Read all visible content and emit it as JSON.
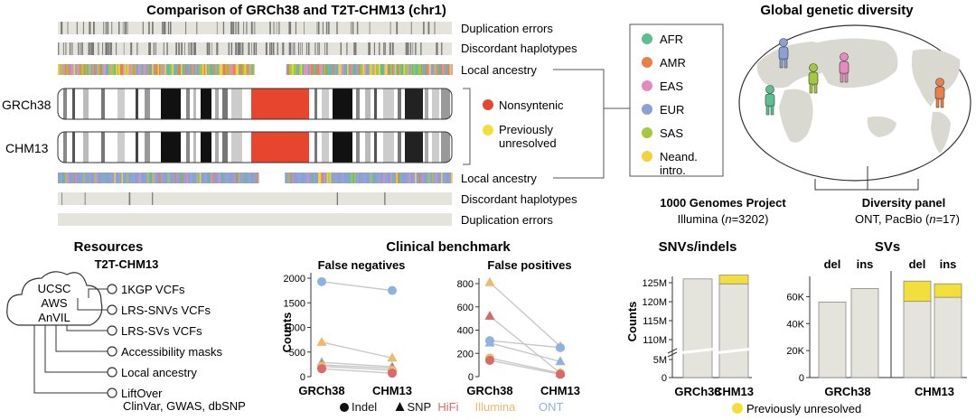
{
  "colors": {
    "AFR": "#5bbf8f",
    "AMR": "#e9804a",
    "EAS": "#e58bbf",
    "EUR": "#8e9fd3",
    "SAS": "#a3c83c",
    "NEAND": "#f1d23a",
    "nonsyntenic": "#e8452e",
    "prev_unresolved": "#f2df3c",
    "track_bg": "#e4e4dc",
    "line": "#555555"
  },
  "comparison": {
    "title": "Comparison of GRCh38 and T2T-CHM13 (chr1)",
    "tracks_top": [
      "Duplication errors",
      "Discordant haplotypes",
      "Local ancestry"
    ],
    "tracks_bottom": [
      "Local ancestry",
      "Discordant haplotypes",
      "Duplication errors"
    ],
    "chrom_labels": [
      "GRCh38",
      "CHM13"
    ],
    "legend": [
      "Nonsyntenic",
      "Previously\nunresolved"
    ]
  },
  "ancestry_legend": {
    "items": [
      {
        "code": "AFR",
        "label": "AFR"
      },
      {
        "code": "AMR",
        "label": "AMR"
      },
      {
        "code": "EAS",
        "label": "EAS"
      },
      {
        "code": "EUR",
        "label": "EUR"
      },
      {
        "code": "SAS",
        "label": "SAS"
      },
      {
        "code": "NEAND",
        "label": "Neand.\nintro."
      }
    ]
  },
  "diversity": {
    "title": "Global genetic diversity",
    "projects": [
      {
        "name": "1000 Genomes Project",
        "detail_pre": "Illumina (",
        "detail_n": "n",
        "detail_post": "=3202)"
      },
      {
        "name": "Diversity panel",
        "detail_pre": "ONT, PacBio (",
        "detail_n": "n",
        "detail_post": "=17)"
      }
    ]
  },
  "resources": {
    "title": "Resources",
    "subtitle": "T2T-CHM13",
    "cloud": [
      "UCSC",
      "AWS",
      "AnVIL"
    ],
    "items": [
      "1KGP VCFs",
      "LRS-SNVs VCFs",
      "LRS-SVs VCFs",
      "Accessibility masks",
      "Local ancestry",
      "LiftOver"
    ],
    "liftover_detail": "ClinVar, GWAS, dbSNP"
  },
  "clinical": {
    "title": "Clinical benchmark",
    "ylabel": "Counts",
    "panels": [
      {
        "title": "False negatives",
        "yticks": [
          "0",
          "500",
          "1000",
          "1500",
          "2000"
        ]
      },
      {
        "title": "False positives",
        "yticks": [
          "0",
          "200",
          "400",
          "600",
          "800"
        ]
      }
    ],
    "xlabels": [
      "GRCh38",
      "CHM13"
    ],
    "legend": [
      {
        "glyph": "●",
        "label": "Indel"
      },
      {
        "glyph": "▲",
        "label": "SNP"
      },
      {
        "label": "HiFi",
        "color": "#d86a6a"
      },
      {
        "label": "Illumina",
        "color": "#f0b86a"
      },
      {
        "label": "ONT",
        "color": "#8fb3dd"
      }
    ]
  },
  "chart_data": [
    {
      "type": "scatter",
      "title": "False negatives",
      "ylabel": "Counts",
      "x": [
        "GRCh38",
        "CHM13"
      ],
      "ylim": [
        0,
        2000
      ],
      "series": [
        {
          "marker": "circle",
          "tech": "ONT",
          "values": [
            1930,
            1750
          ]
        },
        {
          "marker": "triangle",
          "tech": "Illumina",
          "values": [
            700,
            380
          ]
        },
        {
          "marker": "triangle",
          "tech": "ONT",
          "values": [
            290,
            200
          ]
        },
        {
          "marker": "triangle",
          "tech": "HiFi",
          "values": [
            240,
            170
          ]
        },
        {
          "marker": "circle",
          "tech": "Illumina",
          "values": [
            210,
            130
          ]
        },
        {
          "marker": "circle",
          "tech": "HiFi",
          "values": [
            160,
            70
          ]
        }
      ]
    },
    {
      "type": "scatter",
      "title": "False positives",
      "x": [
        "GRCh38",
        "CHM13"
      ],
      "ylim": [
        0,
        800
      ],
      "series": [
        {
          "marker": "triangle",
          "tech": "Illumina",
          "values": [
            810,
            260
          ]
        },
        {
          "marker": "triangle",
          "tech": "HiFi",
          "values": [
            520,
            30
          ]
        },
        {
          "marker": "circle",
          "tech": "ONT",
          "values": [
            310,
            250
          ]
        },
        {
          "marker": "triangle",
          "tech": "ONT",
          "values": [
            290,
            130
          ]
        },
        {
          "marker": "circle",
          "tech": "Illumina",
          "values": [
            160,
            30
          ]
        },
        {
          "marker": "circle",
          "tech": "HiFi",
          "values": [
            140,
            20
          ]
        }
      ]
    },
    {
      "type": "bar",
      "title": "SNVs/indels",
      "ylabel": "Counts",
      "categories": [
        "GRCh38",
        "CHM13"
      ],
      "yticks": [
        "0",
        "5M",
        "110M",
        "115M",
        "120M",
        "125M"
      ],
      "series": [
        {
          "name": "",
          "values": [
            126000000,
            124700000
          ]
        },
        {
          "name": "Previously unresolved",
          "values": [
            0,
            2300000
          ]
        }
      ]
    },
    {
      "type": "bar",
      "title": "SVs",
      "categories": [
        "del",
        "ins",
        "del",
        "ins"
      ],
      "groups": [
        "GRCh38",
        "CHM13"
      ],
      "yticks": [
        "0",
        "20K",
        "40K",
        "60K"
      ],
      "ylim": [
        0,
        75000
      ],
      "series": [
        {
          "name": "",
          "values": [
            56000,
            66000,
            56500,
            59500
          ]
        },
        {
          "name": "Previously unresolved",
          "values": [
            0,
            0,
            15000,
            10000
          ]
        }
      ]
    }
  ],
  "bars_legend": "Previously unresolved"
}
